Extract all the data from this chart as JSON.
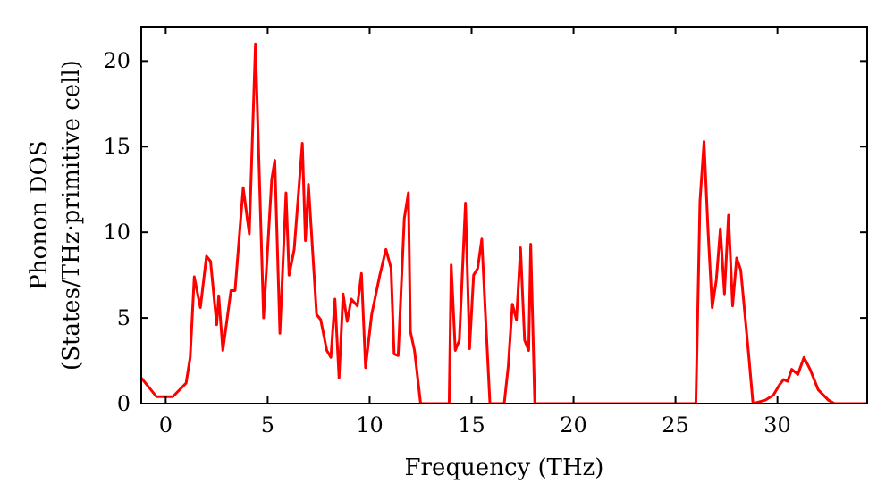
{
  "chart_data": {
    "type": "line",
    "xlabel": "Frequency (THz)",
    "ylabel": "Phonon DOS\n(States/THz·primitive cell)",
    "xlim": [
      -1.2,
      34.4
    ],
    "ylim": [
      0,
      22
    ],
    "xticks": [
      0,
      5,
      10,
      15,
      20,
      25,
      30
    ],
    "yticks": [
      0,
      5,
      10,
      15,
      20
    ],
    "grid": false,
    "marker": "none",
    "line_style": "solid",
    "series": [
      {
        "color": "#ff0000",
        "x": [
          -1.2,
          -0.45,
          0,
          0.35,
          1,
          1.2,
          1.4,
          1.7,
          2.0,
          2.2,
          2.5,
          2.6,
          2.8,
          3.2,
          3.4,
          3.8,
          4.1,
          4.4,
          4.8,
          5.2,
          5.35,
          5.6,
          5.9,
          6.05,
          6.3,
          6.7,
          6.85,
          7.0,
          7.4,
          7.6,
          7.9,
          8.1,
          8.3,
          8.5,
          8.7,
          8.9,
          9.1,
          9.4,
          9.6,
          9.8,
          10.1,
          10.5,
          10.8,
          11.05,
          11.2,
          11.4,
          11.7,
          11.9,
          12.0,
          12.2,
          12.5,
          13.9,
          14.0,
          14.2,
          14.4,
          14.7,
          14.9,
          15.1,
          15.3,
          15.5,
          15.7,
          15.9,
          16.6,
          16.8,
          17.0,
          17.2,
          17.4,
          17.6,
          17.8,
          17.9,
          18.1,
          26.0,
          26.2,
          26.4,
          26.6,
          26.8,
          27.0,
          27.2,
          27.4,
          27.6,
          27.8,
          28.0,
          28.2,
          28.6,
          28.8,
          29.4,
          29.8,
          30.1,
          30.3,
          30.5,
          30.7,
          31.0,
          31.3,
          31.6,
          32.0,
          32.5,
          32.8,
          34.4
        ],
        "values": [
          1.5,
          0.4,
          0.4,
          0.4,
          1.2,
          2.7,
          7.4,
          5.6,
          8.6,
          8.3,
          4.6,
          6.3,
          3.1,
          6.6,
          6.6,
          12.6,
          9.9,
          21,
          5,
          13.1,
          14.2,
          4.1,
          12.3,
          7.5,
          9.0,
          15.2,
          9.5,
          12.8,
          5.2,
          4.9,
          3.1,
          2.7,
          6.1,
          1.5,
          6.4,
          4.8,
          6.1,
          5.7,
          7.6,
          2.1,
          5.2,
          7.5,
          9.0,
          7.9,
          2.9,
          2.8,
          10.8,
          12.3,
          4.2,
          3.1,
          0,
          0,
          8.1,
          3.1,
          3.7,
          11.7,
          3.2,
          7.5,
          7.9,
          9.6,
          4.7,
          0,
          0,
          2.2,
          5.8,
          4.9,
          9.1,
          3.7,
          3.1,
          9.3,
          0,
          0,
          11.8,
          15.3,
          10,
          5.6,
          7.2,
          10.2,
          6.4,
          11,
          5.7,
          8.5,
          7.8,
          2.7,
          0,
          0.2,
          0.5,
          1.1,
          1.4,
          1.3,
          2,
          1.7,
          2.7,
          2,
          0.8,
          0.2,
          0,
          0
        ]
      }
    ]
  }
}
